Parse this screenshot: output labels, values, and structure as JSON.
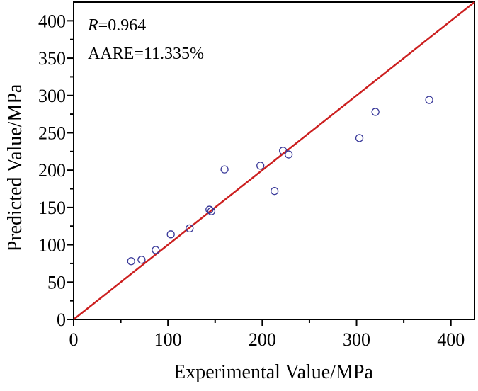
{
  "chart_data": {
    "type": "scatter",
    "title": "",
    "xlabel": "Experimental Value/MPa",
    "ylabel": "Predicted Value/MPa",
    "xlim": [
      0,
      425
    ],
    "ylim": [
      0,
      425
    ],
    "x_ticks": [
      0,
      100,
      200,
      300,
      400
    ],
    "y_ticks": [
      0,
      50,
      100,
      150,
      200,
      250,
      300,
      350,
      400
    ],
    "x_tick_labels": [
      "0",
      "100",
      "200",
      "300",
      "400"
    ],
    "y_tick_labels": [
      "0",
      "50",
      "100",
      "150",
      "200",
      "250",
      "300",
      "350",
      "400"
    ],
    "grid": false,
    "series": [
      {
        "name": "data points",
        "marker": "open-circle",
        "color": "#3a3a9a",
        "points": [
          {
            "x": 61,
            "y": 78
          },
          {
            "x": 72,
            "y": 80
          },
          {
            "x": 87,
            "y": 93
          },
          {
            "x": 103,
            "y": 114
          },
          {
            "x": 123,
            "y": 122
          },
          {
            "x": 144,
            "y": 147
          },
          {
            "x": 146,
            "y": 145
          },
          {
            "x": 160,
            "y": 201
          },
          {
            "x": 198,
            "y": 206
          },
          {
            "x": 213,
            "y": 172
          },
          {
            "x": 222,
            "y": 226
          },
          {
            "x": 228,
            "y": 221
          },
          {
            "x": 303,
            "y": 243
          },
          {
            "x": 320,
            "y": 278
          },
          {
            "x": 377,
            "y": 294
          }
        ]
      }
    ],
    "reference_line": {
      "name": "y = x",
      "color": "#cc1f1f",
      "from": [
        0,
        0
      ],
      "to": [
        425,
        425
      ]
    },
    "annotations": {
      "r_symbol": "R",
      "r_value": "=0.964",
      "aare": "AARE=11.335%"
    }
  }
}
